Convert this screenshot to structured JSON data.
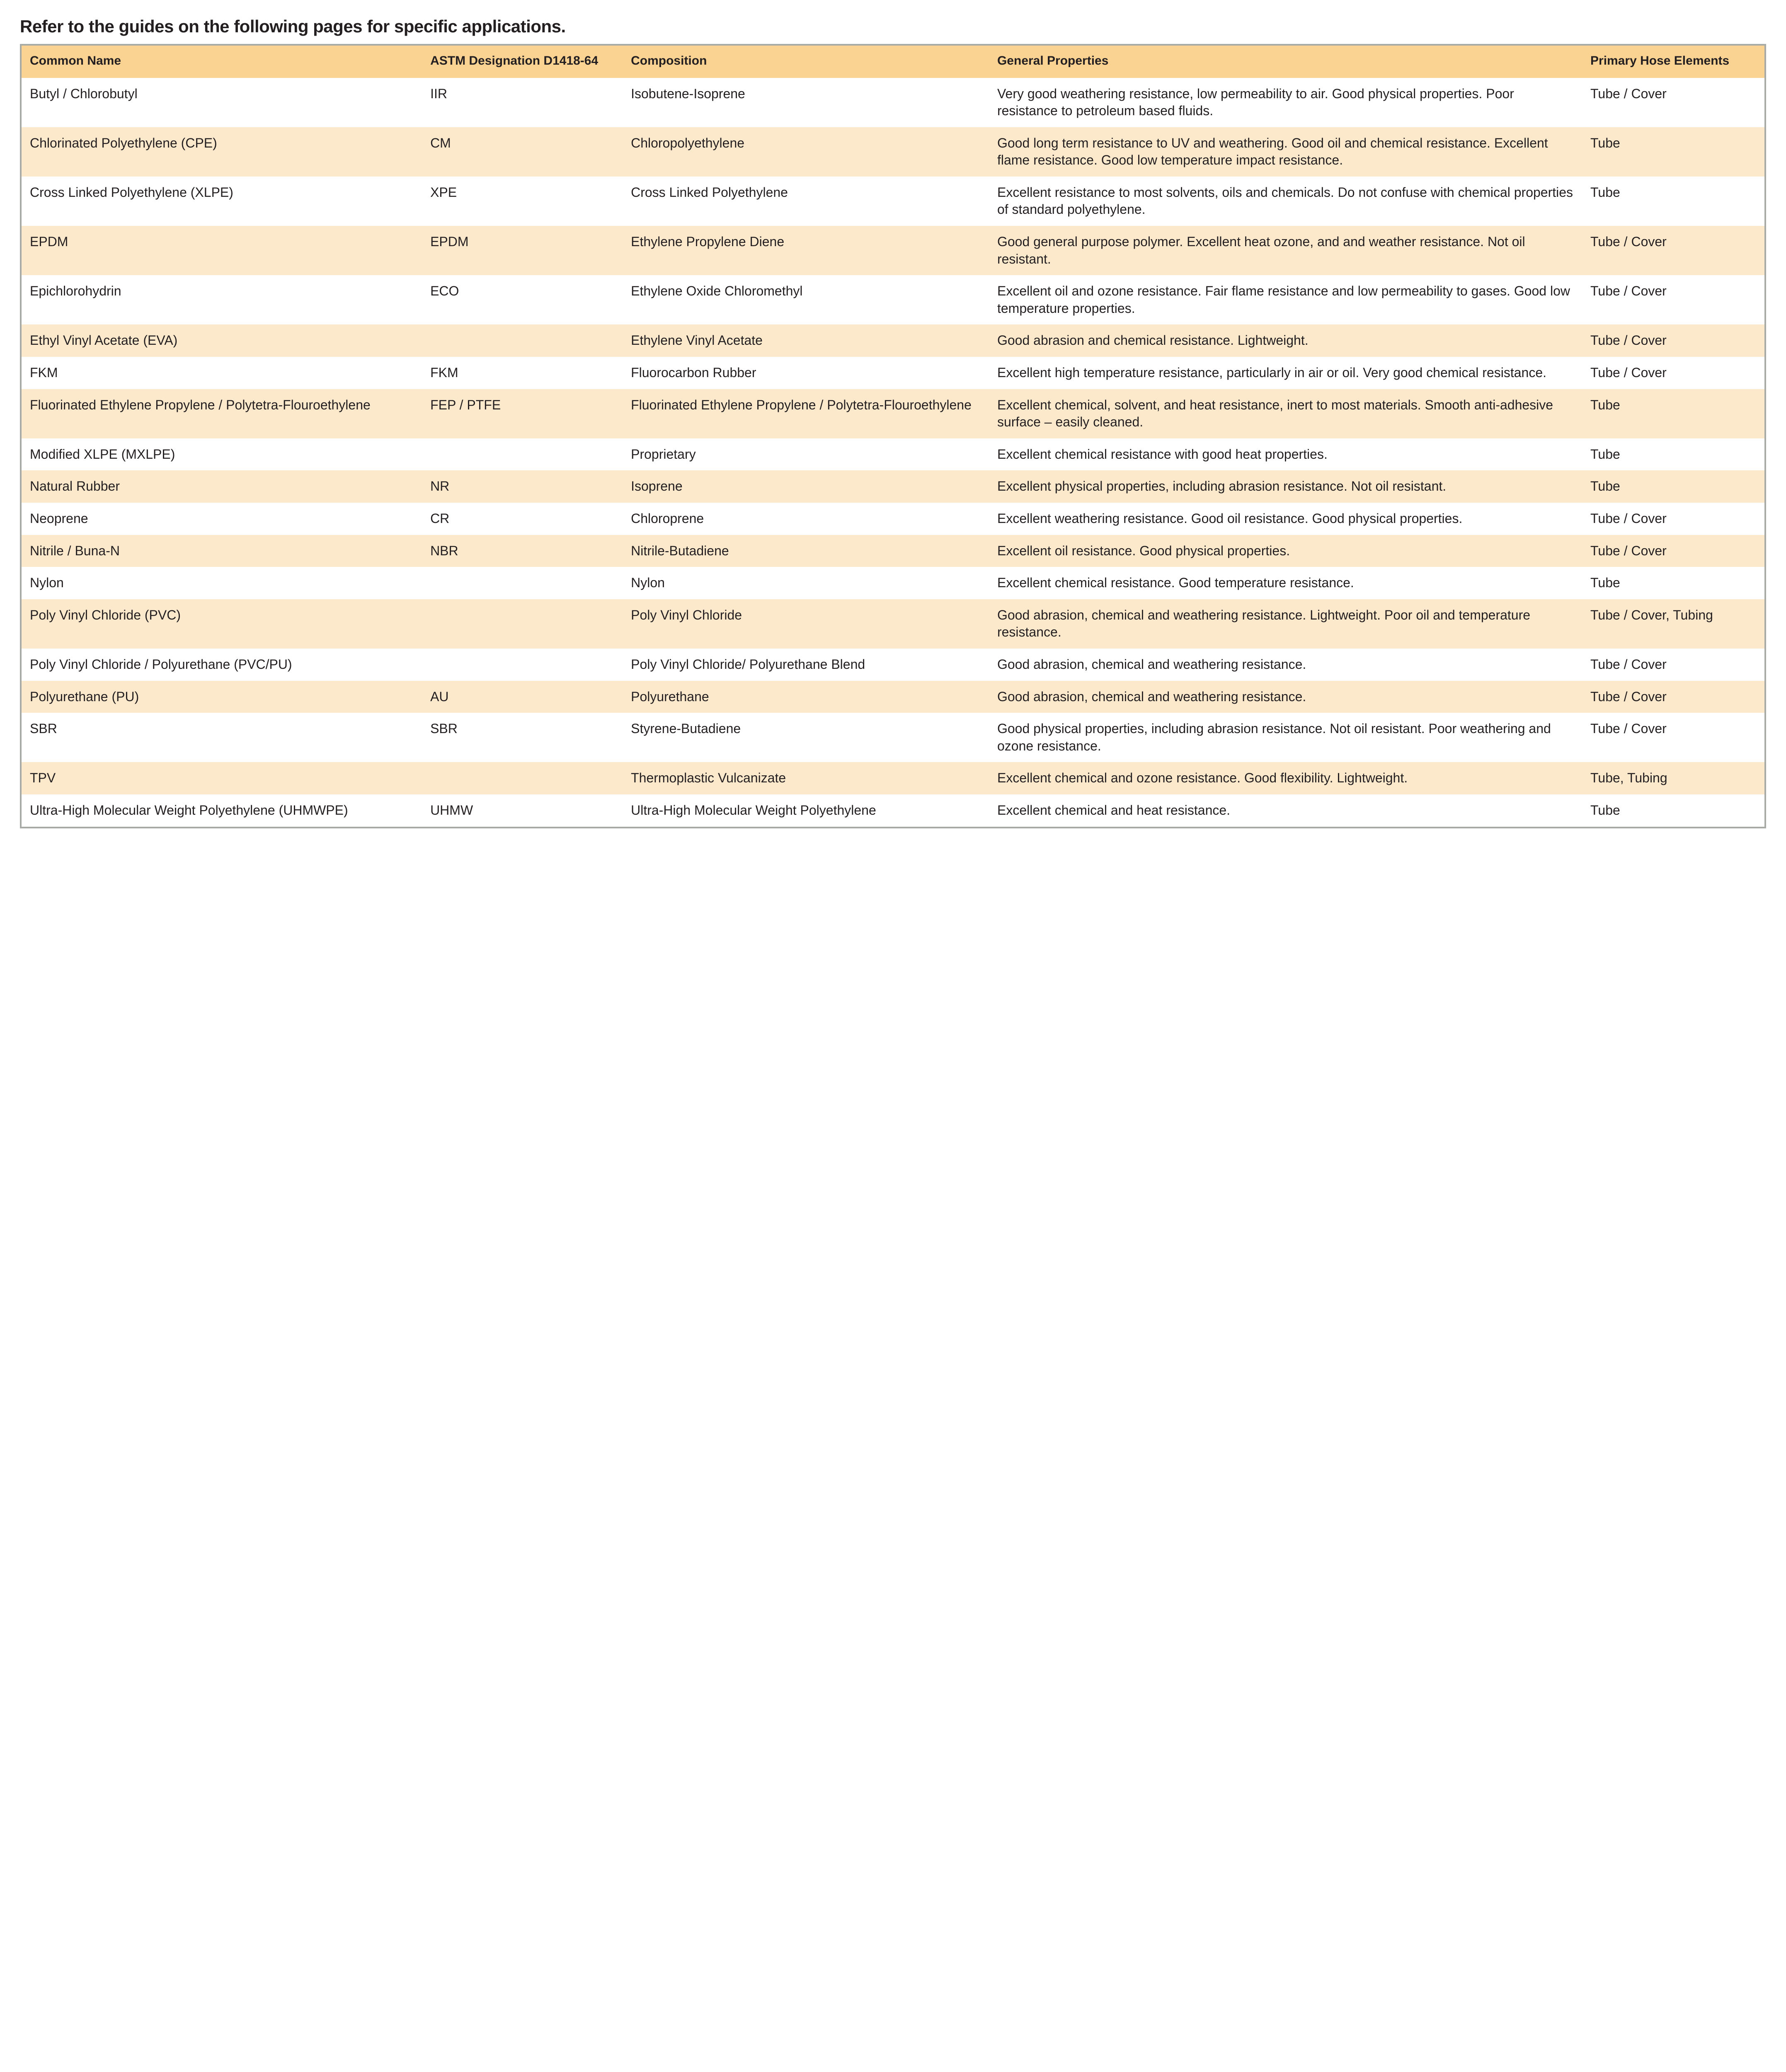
{
  "title": "Refer to the guides on the following pages for specific applications.",
  "table": {
    "type": "table",
    "header_bg": "#fad292",
    "row_alt_bg": "#fce8cb",
    "row_bg": "#ffffff",
    "border_color": "#a7aaa5",
    "text_color": "#231f20",
    "header_fontsize_pt": 22,
    "body_fontsize_pt": 24,
    "columns": [
      {
        "key": "name",
        "label": "Common Name",
        "width_pct": 23.0
      },
      {
        "key": "astm",
        "label": "ASTM Designation D1418-64",
        "width_pct": 11.5
      },
      {
        "key": "comp",
        "label": "Composition",
        "width_pct": 21.0
      },
      {
        "key": "prop",
        "label": "General Properties",
        "width_pct": 34.0
      },
      {
        "key": "elem",
        "label": "Primary Hose Elements",
        "width_pct": 10.5
      }
    ],
    "rows": [
      {
        "name": "Butyl / Chlorobutyl",
        "astm": "IIR",
        "comp": "Isobutene-Isoprene",
        "prop": "Very good weathering resistance, low permeability to air. Good physical properties. Poor resistance to petroleum based fluids.",
        "elem": "Tube / Cover"
      },
      {
        "name": "Chlorinated Polyethylene (CPE)",
        "astm": "CM",
        "comp": "Chloropolyethylene",
        "prop": "Good long term resistance to UV and weathering. Good oil and chemical resistance. Excellent flame resistance. Good low temperature impact resistance.",
        "elem": "Tube"
      },
      {
        "name": "Cross Linked Polyethylene (XLPE)",
        "astm": "XPE",
        "comp": "Cross Linked Polyethylene",
        "prop": "Excellent resistance to most solvents, oils and chemicals. Do not confuse with chemical properties of standard polyethylene.",
        "elem": "Tube"
      },
      {
        "name": "EPDM",
        "astm": "EPDM",
        "comp": "Ethylene Propylene Diene",
        "prop": "Good general purpose polymer. Excellent heat ozone, and and weather resistance. Not oil resistant.",
        "elem": "Tube / Cover"
      },
      {
        "name": "Epichlorohydrin",
        "astm": "ECO",
        "comp": "Ethylene Oxide Chloromethyl",
        "prop": "Excellent oil and ozone resistance. Fair flame resistance and low permeability to gases. Good low temperature properties.",
        "elem": "Tube / Cover"
      },
      {
        "name": "Ethyl Vinyl Acetate (EVA)",
        "astm": "",
        "comp": "Ethylene Vinyl Acetate",
        "prop": "Good abrasion and chemical resistance. Lightweight.",
        "elem": "Tube / Cover"
      },
      {
        "name": "FKM",
        "astm": "FKM",
        "comp": "Fluorocarbon Rubber",
        "prop": "Excellent high temperature resistance, particularly in air or oil. Very good chemical resistance.",
        "elem": "Tube / Cover"
      },
      {
        "name": "Fluorinated Ethylene Propylene / Polytetra-Flouroethylene",
        "astm": "FEP / PTFE",
        "comp": "Fluorinated Ethylene Propylene / Polytetra-Flouroethylene",
        "prop": "Excellent chemical, solvent, and heat resistance, inert to most materials. Smooth anti-adhesive surface – easily cleaned.",
        "elem": "Tube"
      },
      {
        "name": "Modified XLPE (MXLPE)",
        "astm": "",
        "comp": "Proprietary",
        "prop": "Excellent chemical resistance with good heat properties.",
        "elem": "Tube"
      },
      {
        "name": "Natural Rubber",
        "astm": "NR",
        "comp": "Isoprene",
        "prop": "Excellent physical properties, including abrasion resistance. Not oil resistant.",
        "elem": "Tube"
      },
      {
        "name": "Neoprene",
        "astm": "CR",
        "comp": "Chloroprene",
        "prop": "Excellent weathering resistance. Good oil resistance. Good physical properties.",
        "elem": "Tube / Cover"
      },
      {
        "name": "Nitrile / Buna-N",
        "astm": "NBR",
        "comp": "Nitrile-Butadiene",
        "prop": "Excellent oil resistance. Good physical properties.",
        "elem": "Tube / Cover"
      },
      {
        "name": "Nylon",
        "astm": "",
        "comp": "Nylon",
        "prop": "Excellent chemical resistance. Good temperature resistance.",
        "elem": "Tube"
      },
      {
        "name": "Poly Vinyl Chloride (PVC)",
        "astm": "",
        "comp": "Poly Vinyl Chloride",
        "prop": "Good abrasion, chemical and weathering resistance. Lightweight. Poor oil and temperature resistance.",
        "elem": "Tube / Cover, Tubing"
      },
      {
        "name": "Poly Vinyl Chloride / Polyurethane (PVC/PU)",
        "astm": "",
        "comp": "Poly Vinyl Chloride/ Polyurethane Blend",
        "prop": "Good abrasion, chemical and weathering resistance.",
        "elem": "Tube / Cover"
      },
      {
        "name": "Polyurethane (PU)",
        "astm": "AU",
        "comp": "Polyurethane",
        "prop": "Good abrasion, chemical and weathering resistance.",
        "elem": "Tube / Cover"
      },
      {
        "name": "SBR",
        "astm": "SBR",
        "comp": "Styrene-Butadiene",
        "prop": "Good physical properties, including abrasion resistance. Not oil resistant. Poor weathering and ozone resistance.",
        "elem": "Tube / Cover"
      },
      {
        "name": "TPV",
        "astm": "",
        "comp": "Thermoplastic Vulcanizate",
        "prop": "Excellent chemical and ozone resistance. Good flexibility. Lightweight.",
        "elem": "Tube, Tubing"
      },
      {
        "name": "Ultra-High Molecular Weight Polyethylene (UHMWPE)",
        "astm": "UHMW",
        "comp": "Ultra-High Molecular Weight Polyethylene",
        "prop": "Excellent chemical and heat resistance.",
        "elem": "Tube"
      }
    ]
  }
}
